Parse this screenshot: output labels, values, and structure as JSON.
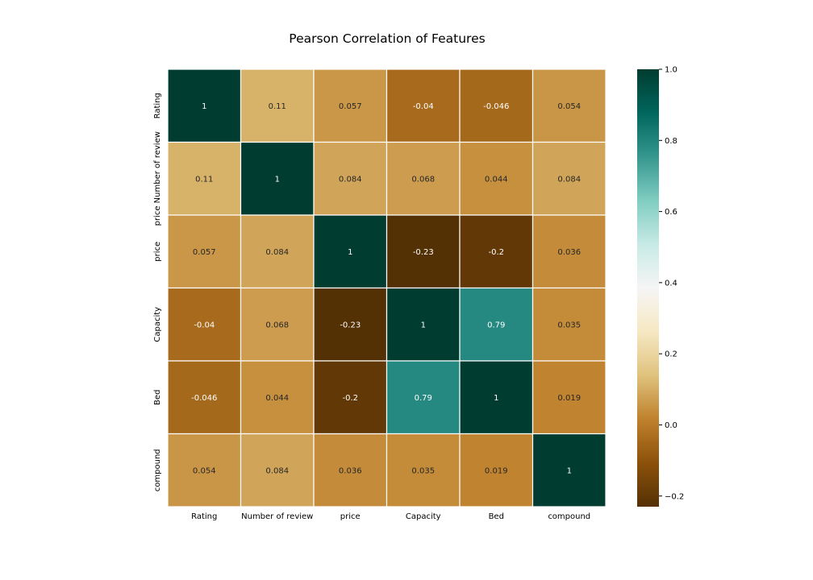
{
  "chart_data": {
    "type": "heatmap",
    "title": "Pearson Correlation of Features",
    "x_labels": [
      "Rating",
      "Number of review",
      "price",
      "Capacity",
      "Bed",
      "compound"
    ],
    "y_labels": [
      "Rating",
      "price Number of review",
      "price",
      "Capacity",
      "Bed",
      "compound"
    ],
    "values": [
      [
        1,
        0.11,
        0.057,
        -0.04,
        -0.046,
        0.054
      ],
      [
        0.11,
        1,
        0.084,
        0.068,
        0.044,
        0.084
      ],
      [
        0.057,
        0.084,
        1,
        -0.23,
        -0.2,
        0.036
      ],
      [
        -0.04,
        0.068,
        -0.23,
        1,
        0.79,
        0.035
      ],
      [
        -0.046,
        0.044,
        -0.2,
        0.79,
        1,
        0.019
      ],
      [
        0.054,
        0.084,
        0.036,
        0.035,
        0.019,
        1
      ]
    ],
    "cell_labels": [
      [
        "1",
        "0.11",
        "0.057",
        "-0.04",
        "-0.046",
        "0.054"
      ],
      [
        "0.11",
        "1",
        "0.084",
        "0.068",
        "0.044",
        "0.084"
      ],
      [
        "0.057",
        "0.084",
        "1",
        "-0.23",
        "-0.2",
        "0.036"
      ],
      [
        "-0.04",
        "0.068",
        "-0.23",
        "1",
        "0.79",
        "0.035"
      ],
      [
        "-0.046",
        "0.044",
        "-0.2",
        "0.79",
        "1",
        "0.019"
      ],
      [
        "0.054",
        "0.084",
        "0.036",
        "0.035",
        "0.019",
        "1"
      ]
    ],
    "colormap": "BrBG",
    "vmin": -0.23,
    "vmax": 1.0,
    "colorbar_ticks": [
      -0.2,
      0.0,
      0.2,
      0.4,
      0.6,
      0.8,
      1.0
    ],
    "colorbar_tick_labels": [
      "−0.2",
      "0.0",
      "0.2",
      "0.4",
      "0.6",
      "0.8",
      "1.0"
    ],
    "grid_line_color": "#ffffff"
  }
}
